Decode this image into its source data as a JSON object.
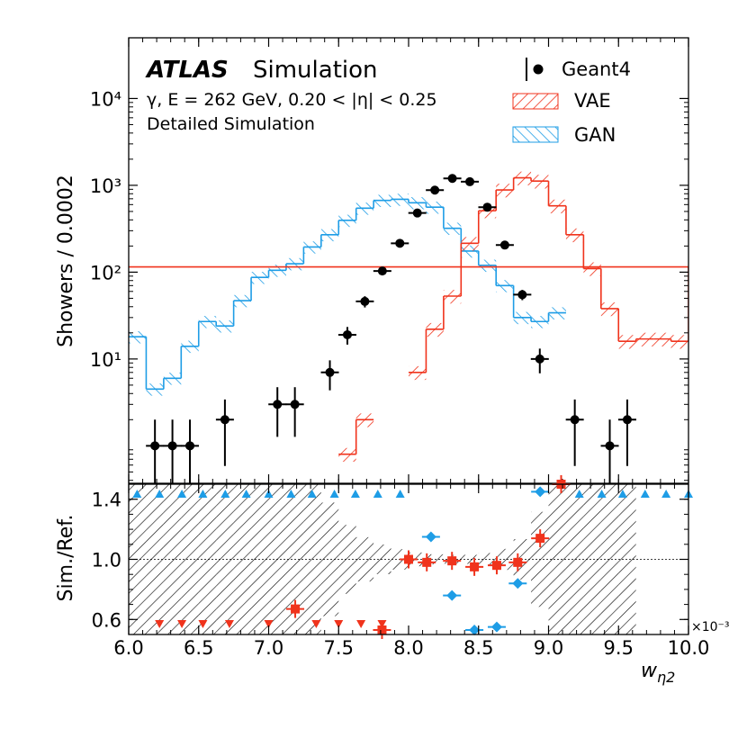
{
  "chart_data": {
    "type": "histogram",
    "experiment": "ATLAS",
    "experiment_suffix": "Simulation",
    "info_lines": [
      "γ, E = 262 GeV, 0.20 < |η| < 0.25",
      "Detailed Simulation"
    ],
    "legend": [
      "Geant4",
      "VAE",
      "GAN"
    ],
    "colors": {
      "geant4": "#000000",
      "vae": "#f0331c",
      "gan": "#1e9de6"
    },
    "x_exponent_label": "×10⁻³",
    "xlabel": "w",
    "xlabel_sub": "η2",
    "ylabel_top": "Showers / 0.0002",
    "ylabel_bottom": "Sim./Ref.",
    "xlim": [
      6.0,
      10.0
    ],
    "ylim_top_log": [
      0.37,
      50000
    ],
    "ylim_bottom": [
      0.5,
      1.5
    ],
    "yscale_top": "log",
    "x_ticks": [
      "6.0",
      "6.5",
      "7.0",
      "7.5",
      "8.0",
      "8.5",
      "9.0",
      "9.5",
      "10.0"
    ],
    "y_ticks_top": [
      "10¹",
      "10²",
      "10³",
      "10⁴"
    ],
    "y_ticks_bottom": [
      "0.6",
      "1.0",
      "1.4"
    ],
    "bin_edges": [
      6.0,
      6.125,
      6.25,
      6.375,
      6.5,
      6.625,
      6.75,
      6.875,
      7.0,
      7.125,
      7.25,
      7.375,
      7.5,
      7.625,
      7.75,
      7.875,
      8.0,
      8.125,
      8.25,
      8.375,
      8.5,
      8.625,
      8.75,
      8.875,
      9.0,
      9.125,
      9.25,
      9.375,
      9.5,
      9.625,
      9.75,
      9.875,
      10.0
    ],
    "geant4": [
      null,
      1,
      1,
      1,
      null,
      2,
      null,
      null,
      3,
      3,
      null,
      7,
      19,
      46,
      103,
      215,
      480,
      880,
      1200,
      1100,
      560,
      205,
      55,
      10,
      null,
      2,
      null,
      1,
      2
    ],
    "geant4_xoffset_bins": 1,
    "vae": [
      null,
      null,
      null,
      null,
      null,
      null,
      null,
      null,
      0.8,
      2.0,
      null,
      null,
      7,
      22,
      53,
      215,
      510,
      885,
      1220,
      1120,
      580,
      270,
      110,
      38,
      16,
      17,
      17,
      16,
      115
    ],
    "vae_xoffset_bins": 4,
    "gan": [
      18,
      4.5,
      6,
      14,
      27,
      24,
      47,
      87,
      105,
      125,
      195,
      270,
      395,
      545,
      670,
      690,
      630,
      560,
      320,
      175,
      120,
      70,
      30,
      27,
      34
    ],
    "gan_xoffset_bins": 0,
    "ratio_vae": [
      {
        "x": 7.19,
        "y": 0.67
      },
      {
        "x": 7.81,
        "y": 0.53
      },
      {
        "x": 8.0,
        "y": 1.0
      },
      {
        "x": 8.13,
        "y": 0.98
      },
      {
        "x": 8.31,
        "y": 0.99
      },
      {
        "x": 8.47,
        "y": 0.95
      },
      {
        "x": 8.63,
        "y": 0.96
      },
      {
        "x": 8.78,
        "y": 0.98
      },
      {
        "x": 8.94,
        "y": 1.14
      },
      {
        "x": 9.09,
        "y": 1.5
      }
    ],
    "ratio_gan": [
      {
        "x": 8.16,
        "y": 1.15
      },
      {
        "x": 8.31,
        "y": 0.76
      },
      {
        "x": 8.47,
        "y": 0.53
      },
      {
        "x": 8.63,
        "y": 0.55
      },
      {
        "x": 8.78,
        "y": 0.84
      },
      {
        "x": 8.94,
        "y": 1.45
      }
    ],
    "ratio_vae_low_markers": [
      6.22,
      6.38,
      6.53,
      6.72,
      7.0,
      7.34,
      7.5,
      7.66,
      7.81
    ],
    "ratio_high_markers": [
      6.06,
      6.22,
      6.38,
      6.53,
      6.69,
      6.84,
      7.0,
      7.16,
      7.31,
      7.47,
      7.62,
      7.78,
      7.94,
      9.22,
      9.38,
      9.53,
      9.69,
      9.84,
      10.0
    ]
  }
}
